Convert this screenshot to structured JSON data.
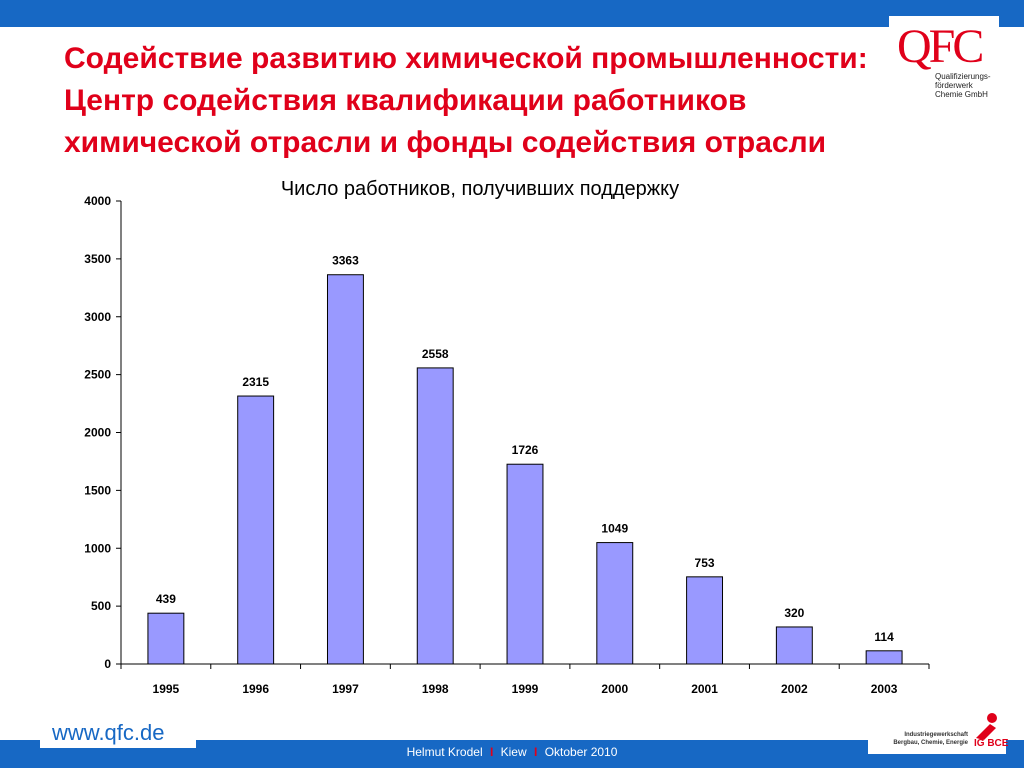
{
  "header": {
    "title_lines": [
      "Содействие развитию химической промышленности:",
      "Центр содействия квалификации работников",
      "химической отрасли и фонды содействия отрасли"
    ]
  },
  "logo": {
    "mark": "QFC",
    "lines": [
      "Qualifizierungs-",
      "förderwerk",
      "Chemie GmbH"
    ]
  },
  "chart_data": {
    "type": "bar",
    "title": "Число работников, получивших поддержку",
    "categories": [
      "1995",
      "1996",
      "1997",
      "1998",
      "1999",
      "2000",
      "2001",
      "2002",
      "2003"
    ],
    "values": [
      439,
      2315,
      3363,
      2558,
      1726,
      1049,
      753,
      320,
      114
    ],
    "xlabel": "",
    "ylabel": "",
    "ylim": [
      0,
      4000
    ],
    "yticks": [
      0,
      500,
      1000,
      1500,
      2000,
      2500,
      3000,
      3500,
      4000
    ],
    "data_labels": true,
    "grid": false,
    "legend": "none",
    "bar_color": "#9999ff",
    "bar_border": "#000000"
  },
  "footer": {
    "author": "Helmut Krodel",
    "sep": "I",
    "city": "Kiew",
    "date": "Oktober 2010",
    "url": "www.qfc.de",
    "union_lines": [
      "Industriegewerkschaft",
      "Bergbau, Chemie, Energie"
    ],
    "union_abbr": "IG BCE"
  },
  "colors": {
    "accent_blue": "#1768c4",
    "title_red": "#e0001a"
  }
}
